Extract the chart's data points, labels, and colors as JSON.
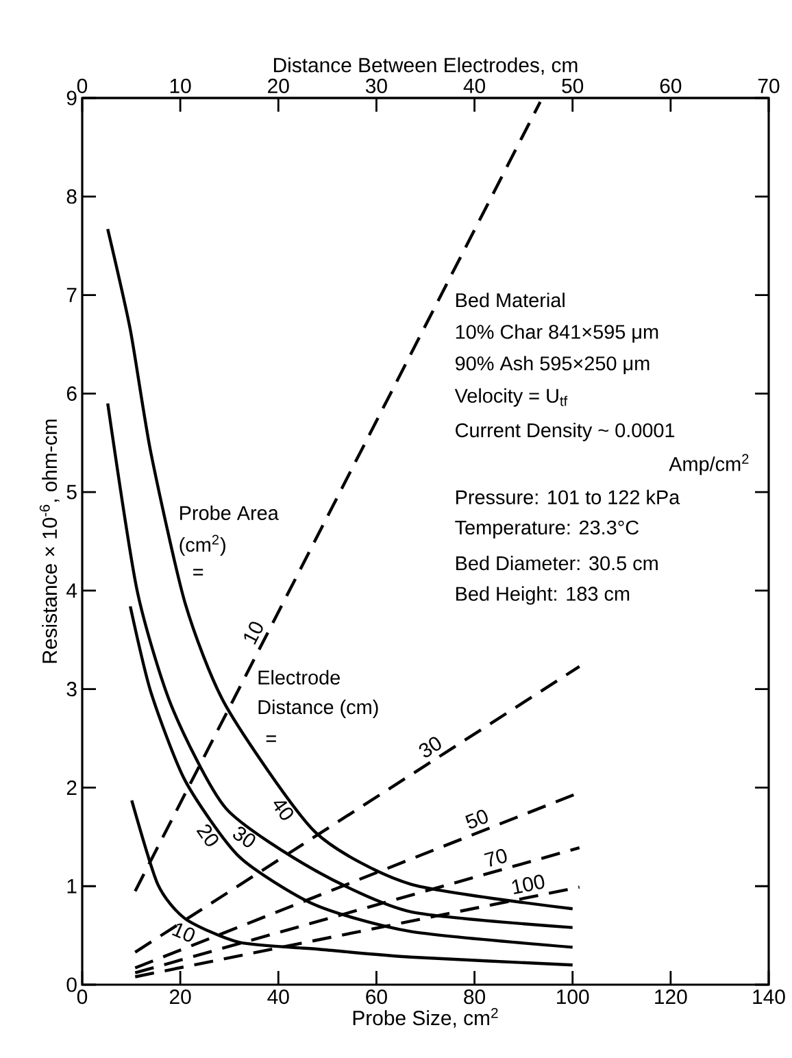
{
  "chart_data": {
    "type": "line",
    "xlabel": "Probe Size, cm$^{2}$",
    "x2label": "Distance Between Electrodes, cm",
    "ylabel": "Resistance × 10$^{-6}$, ohm-cm",
    "xlim": [
      0,
      140
    ],
    "xticks": [
      0,
      20,
      40,
      60,
      80,
      100,
      120,
      140
    ],
    "x2lim": [
      0,
      70
    ],
    "x2ticks": [
      0,
      10,
      20,
      30,
      40,
      50,
      60,
      70
    ],
    "ylim": [
      0,
      9
    ],
    "yticks": [
      0,
      1,
      2,
      3,
      4,
      5,
      6,
      7,
      8,
      9
    ],
    "marker": "none",
    "series": [
      {
        "name": "10",
        "color": "#000000",
        "line_style": "solid",
        "x": [
          10.1,
          15.4,
          21,
          32,
          48.2,
          67,
          100
        ],
        "values": [
          1.87,
          1.02,
          0.67,
          0.43,
          0.36,
          0.28,
          0.2
        ]
      },
      {
        "name": "20",
        "color": "#000000",
        "line_style": "solid",
        "x": [
          9.8,
          14,
          21,
          32,
          47.5,
          67,
          100
        ],
        "values": [
          3.84,
          2.97,
          2.07,
          1.3,
          0.81,
          0.54,
          0.38
        ]
      },
      {
        "name": "30",
        "color": "#000000",
        "line_style": "solid",
        "x": [
          5.2,
          11.2,
          18.2,
          29.3,
          47.5,
          67,
          100
        ],
        "values": [
          5.9,
          4.0,
          2.83,
          1.79,
          1.16,
          0.74,
          0.58
        ]
      },
      {
        "name": "40",
        "color": "#000000",
        "line_style": "solid",
        "x": [
          5.2,
          9.8,
          14,
          21,
          29.3,
          47.5,
          67,
          100
        ],
        "values": [
          7.67,
          6.65,
          5.4,
          3.87,
          2.83,
          1.55,
          1.02,
          0.77
        ]
      },
      {
        "name": "10",
        "color": "#000000",
        "line_style": "dashed",
        "axis": "x2",
        "x": [
          5.4,
          46.7
        ],
        "values": [
          0.95,
          8.96
        ]
      },
      {
        "name": "30",
        "color": "#000000",
        "line_style": "dashed",
        "axis": "x2",
        "x": [
          5.4,
          50.7
        ],
        "values": [
          0.33,
          3.23
        ]
      },
      {
        "name": "50",
        "color": "#000000",
        "line_style": "dashed",
        "axis": "x2",
        "x": [
          5.4,
          50.7
        ],
        "values": [
          0.17,
          1.95
        ]
      },
      {
        "name": "70",
        "color": "#000000",
        "line_style": "dashed",
        "axis": "x2",
        "x": [
          5.4,
          50.7
        ],
        "values": [
          0.12,
          1.39
        ]
      },
      {
        "name": "100",
        "color": "#000000",
        "line_style": "dashed",
        "axis": "x2",
        "x": [
          5.4,
          50.7
        ],
        "values": [
          0.08,
          0.99
        ]
      }
    ],
    "annotations": [
      "Probe Area",
      "(cm$^{2}$)",
      "=",
      "Electrode",
      "Distance (cm)",
      "=",
      "Bed Material",
      "10% Char 841×595 μm",
      "90% Ash 595×250 μm",
      "Velocity = U$_{tf}$",
      "Current Density ~ 0.0001",
      "Amp/cm$^{2}$",
      "Pressure: 101 to 122 kPa",
      "Temperature: 23.3°C",
      "Bed Diameter: 30.5 cm",
      "Bed Height: 183 cm"
    ]
  }
}
